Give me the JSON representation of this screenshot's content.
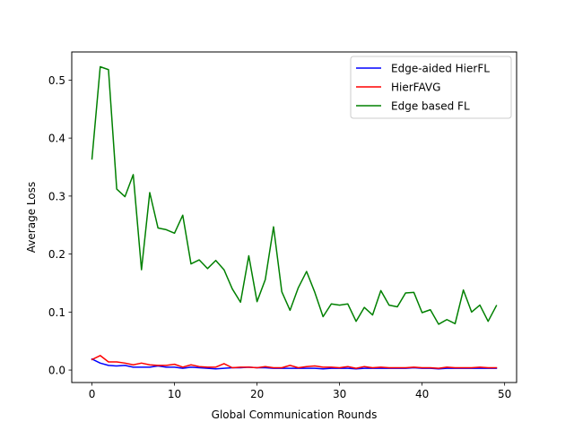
{
  "chart_data": {
    "type": "line",
    "title": "",
    "xlabel": "Global Communication Rounds",
    "ylabel": "Average Loss",
    "xlim": [
      -2.45,
      51.45
    ],
    "ylim": [
      -0.0215,
      0.5485
    ],
    "xticks": [
      0,
      10,
      20,
      30,
      40,
      50
    ],
    "yticks": [
      0.0,
      0.1,
      0.2,
      0.3,
      0.4,
      0.5
    ],
    "ytick_labels": [
      "0.0",
      "0.1",
      "0.2",
      "0.3",
      "0.4",
      "0.5"
    ],
    "grid": false,
    "legend_position": "top-right",
    "x": [
      0,
      1,
      2,
      3,
      4,
      5,
      6,
      7,
      8,
      9,
      10,
      11,
      12,
      13,
      14,
      15,
      16,
      17,
      18,
      19,
      20,
      21,
      22,
      23,
      24,
      25,
      26,
      27,
      28,
      29,
      30,
      31,
      32,
      33,
      34,
      35,
      36,
      37,
      38,
      39,
      40,
      41,
      42,
      43,
      44,
      45,
      46,
      47,
      48,
      49
    ],
    "series": [
      {
        "name": "Edge-aided HierFL",
        "color": "#0000ff",
        "values": [
          0.019,
          0.012,
          0.008,
          0.007,
          0.008,
          0.005,
          0.005,
          0.005,
          0.007,
          0.005,
          0.005,
          0.003,
          0.005,
          0.004,
          0.003,
          0.002,
          0.003,
          0.004,
          0.004,
          0.005,
          0.004,
          0.004,
          0.003,
          0.003,
          0.003,
          0.003,
          0.003,
          0.003,
          0.002,
          0.003,
          0.003,
          0.003,
          0.002,
          0.003,
          0.003,
          0.003,
          0.003,
          0.003,
          0.003,
          0.004,
          0.003,
          0.003,
          0.002,
          0.003,
          0.003,
          0.003,
          0.003,
          0.003,
          0.003,
          0.003
        ]
      },
      {
        "name": "HierFAVG",
        "color": "#ff0000",
        "values": [
          0.018,
          0.025,
          0.014,
          0.014,
          0.012,
          0.009,
          0.012,
          0.009,
          0.008,
          0.008,
          0.01,
          0.005,
          0.009,
          0.006,
          0.005,
          0.005,
          0.011,
          0.004,
          0.005,
          0.005,
          0.004,
          0.006,
          0.004,
          0.004,
          0.008,
          0.004,
          0.006,
          0.007,
          0.005,
          0.005,
          0.004,
          0.006,
          0.003,
          0.006,
          0.004,
          0.005,
          0.004,
          0.004,
          0.004,
          0.005,
          0.004,
          0.004,
          0.003,
          0.005,
          0.004,
          0.004,
          0.004,
          0.005,
          0.004,
          0.004
        ]
      },
      {
        "name": "Edge based FL",
        "color": "#008000",
        "values": [
          0.364,
          0.523,
          0.518,
          0.312,
          0.299,
          0.337,
          0.173,
          0.306,
          0.245,
          0.242,
          0.236,
          0.267,
          0.183,
          0.19,
          0.175,
          0.189,
          0.173,
          0.14,
          0.117,
          0.197,
          0.118,
          0.156,
          0.247,
          0.135,
          0.103,
          0.142,
          0.17,
          0.134,
          0.092,
          0.114,
          0.112,
          0.114,
          0.084,
          0.108,
          0.095,
          0.137,
          0.112,
          0.109,
          0.133,
          0.134,
          0.099,
          0.104,
          0.079,
          0.087,
          0.08,
          0.138,
          0.1,
          0.112,
          0.084,
          0.111
        ]
      }
    ]
  }
}
